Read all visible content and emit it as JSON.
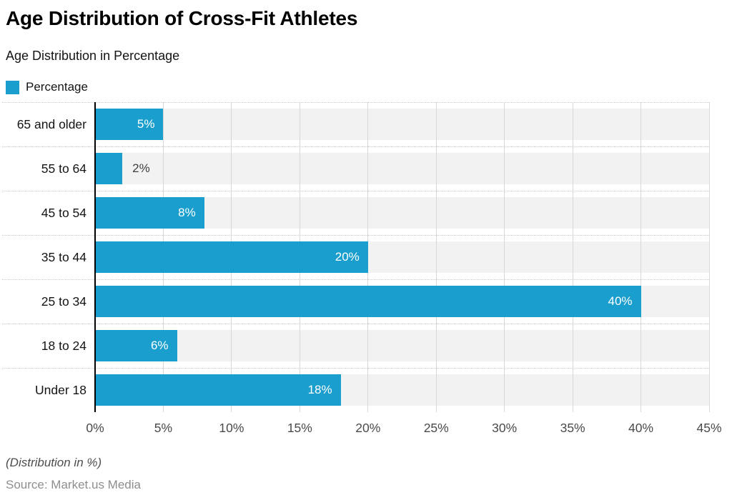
{
  "title": "Age Distribution of Cross-Fit Athletes",
  "subtitle": "Age Distribution in Percentage",
  "legend": {
    "label": "Percentage"
  },
  "footer": {
    "note": "(Distribution in %)",
    "source": "Source: Market.us Media"
  },
  "colors": {
    "bar": "#1A9ECD",
    "band": "#F2F2F2",
    "gridline": "#D8D8D8",
    "row_divider": "#C9C9C9",
    "axis_line": "#000000",
    "value_label_inside": "#FFFFFF",
    "value_label_outside": "#404040"
  },
  "chart_data": {
    "type": "bar",
    "orientation": "horizontal",
    "title": "Age Distribution of Cross-Fit Athletes",
    "subtitle": "Age Distribution in Percentage",
    "series_name": "Percentage",
    "categories": [
      "65 and older",
      "55 to 64",
      "45 to 54",
      "35 to 44",
      "25 to 34",
      "18 to 24",
      "Under 18"
    ],
    "values": [
      5,
      2,
      8,
      20,
      40,
      6,
      18
    ],
    "value_labels": [
      "5%",
      "2%",
      "8%",
      "20%",
      "40%",
      "6%",
      "18%"
    ],
    "xlabel": "",
    "ylabel": "",
    "xlim": [
      0,
      45
    ],
    "x_ticks": [
      0,
      5,
      10,
      15,
      20,
      25,
      30,
      35,
      40,
      45
    ],
    "x_tick_labels": [
      "0%",
      "5%",
      "10%",
      "15%",
      "20%",
      "25%",
      "30%",
      "35%",
      "40%",
      "45%"
    ],
    "grid": "vertical-solid-lines and dotted-row-dividers",
    "legend_position": "top-left"
  }
}
